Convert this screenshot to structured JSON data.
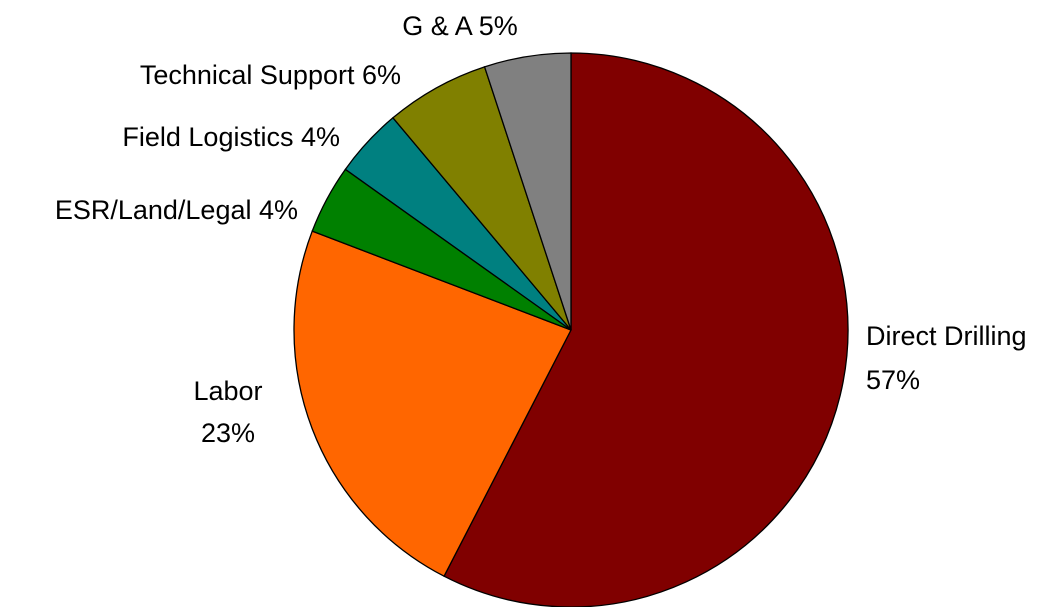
{
  "chart_data": {
    "type": "pie",
    "title": "",
    "slices": [
      {
        "name": "Direct Drilling",
        "value": 57,
        "pct_label": "57%",
        "color": "#800000"
      },
      {
        "name": "Labor",
        "value": 23,
        "pct_label": "23%",
        "color": "#FF6600"
      },
      {
        "name": "ESR/Land/Legal",
        "value": 4,
        "pct_label": "4%",
        "color": "#008000"
      },
      {
        "name": "Field Logistics",
        "value": 4,
        "pct_label": "4%",
        "color": "#008080"
      },
      {
        "name": "Technical Support",
        "value": 6,
        "pct_label": "6%",
        "color": "#808000"
      },
      {
        "name": "G & A",
        "value": 5,
        "pct_label": "5%",
        "color": "#808080"
      }
    ],
    "start": "12 o'clock",
    "direction": "clockwise",
    "legend": "none",
    "labels": "outside"
  }
}
